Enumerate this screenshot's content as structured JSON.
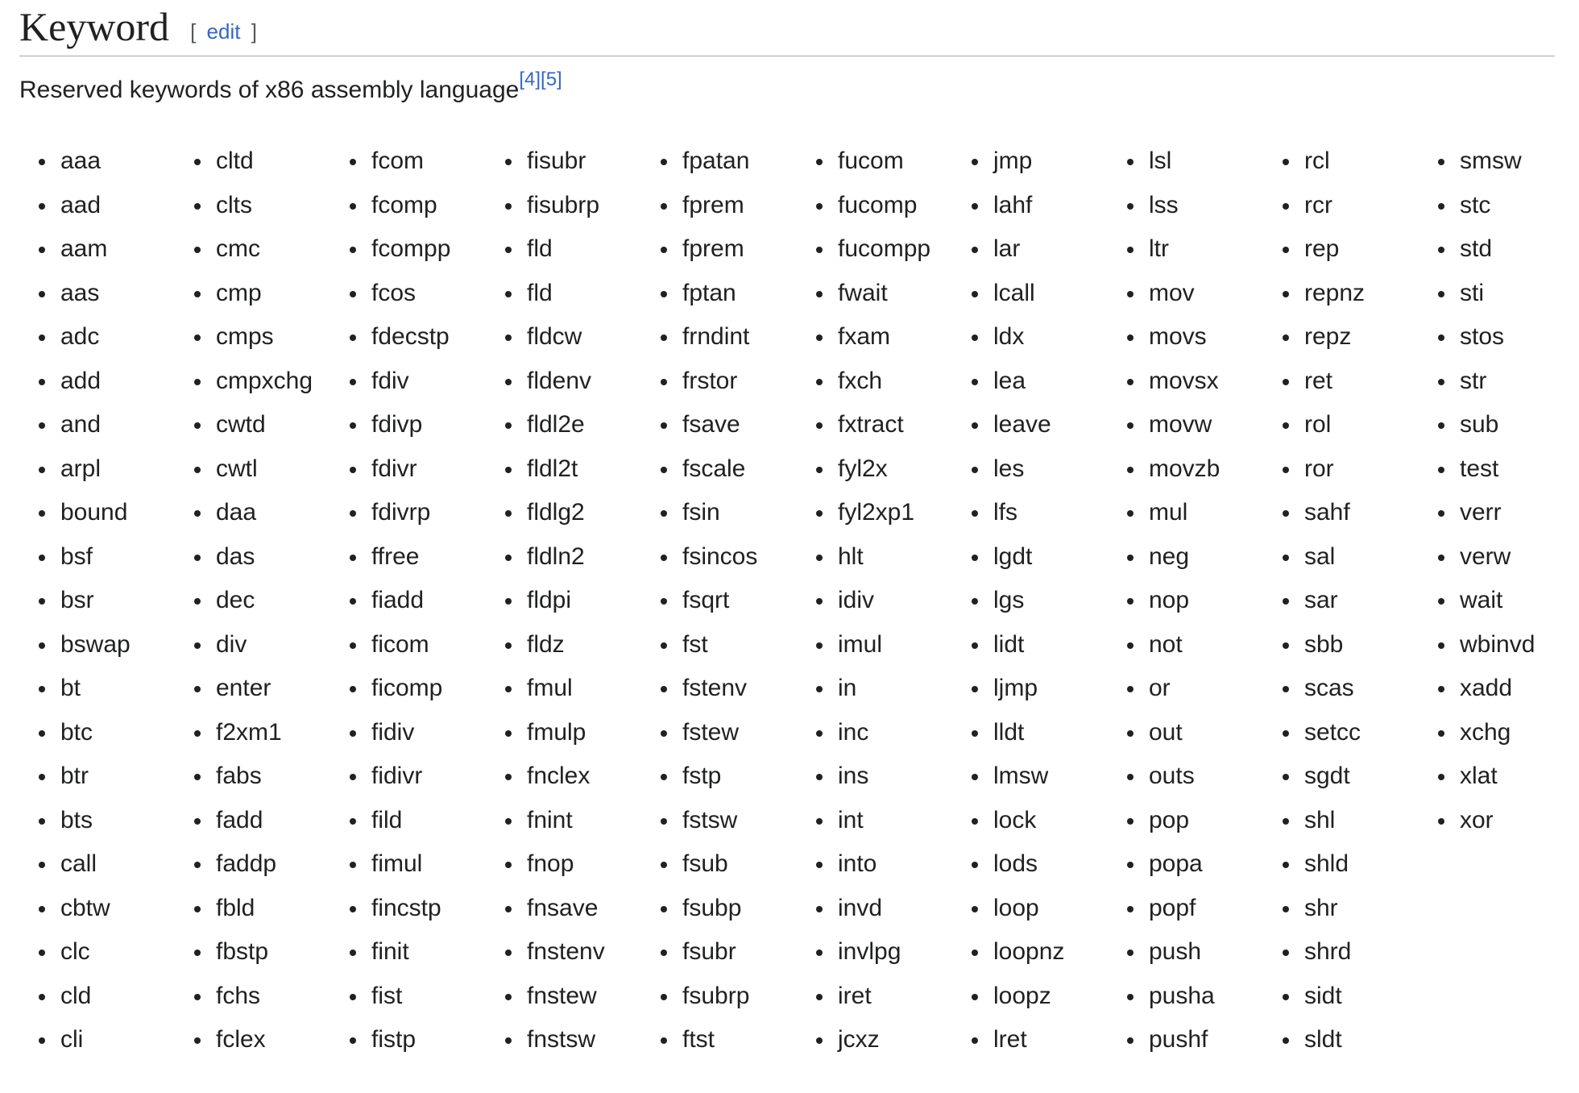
{
  "section": {
    "title": "Keyword",
    "edit_open": "[",
    "edit_label": "edit",
    "edit_close": "]"
  },
  "intro": {
    "text": "Reserved keywords of x86 assembly language",
    "refs": [
      "[4]",
      "[5]"
    ]
  },
  "keyword_columns": [
    [
      "aaa",
      "aad",
      "aam",
      "aas",
      "adc",
      "add",
      "and",
      "arpl",
      "bound",
      "bsf",
      "bsr",
      "bswap",
      "bt",
      "btc",
      "btr",
      "bts",
      "call",
      "cbtw",
      "clc",
      "cld",
      "cli"
    ],
    [
      "cltd",
      "clts",
      "cmc",
      "cmp",
      "cmps",
      "cmpxchg",
      "cwtd",
      "cwtl",
      "daa",
      "das",
      "dec",
      "div",
      "enter",
      "f2xm1",
      "fabs",
      "fadd",
      "faddp",
      "fbld",
      "fbstp",
      "fchs",
      "fclex"
    ],
    [
      "fcom",
      "fcomp",
      "fcompp",
      "fcos",
      "fdecstp",
      "fdiv",
      "fdivp",
      "fdivr",
      "fdivrp",
      "ffree",
      "fiadd",
      "ficom",
      "ficomp",
      "fidiv",
      "fidivr",
      "fild",
      "fimul",
      "fincstp",
      "finit",
      "fist",
      "fistp"
    ],
    [
      "fisubr",
      "fisubrp",
      "fld",
      "fld",
      "fldcw",
      "fldenv",
      "fldl2e",
      "fldl2t",
      "fldlg2",
      "fldln2",
      "fldpi",
      "fldz",
      "fmul",
      "fmulp",
      "fnclex",
      "fnint",
      "fnop",
      "fnsave",
      "fnstenv",
      "fnstew",
      "fnstsw"
    ],
    [
      "fpatan",
      "fprem",
      "fprem",
      "fptan",
      "frndint",
      "frstor",
      "fsave",
      "fscale",
      "fsin",
      "fsincos",
      "fsqrt",
      "fst",
      "fstenv",
      "fstew",
      "fstp",
      "fstsw",
      "fsub",
      "fsubp",
      "fsubr",
      "fsubrp",
      "ftst"
    ],
    [
      "fucom",
      "fucomp",
      "fucompp",
      "fwait",
      "fxam",
      "fxch",
      "fxtract",
      "fyl2x",
      "fyl2xp1",
      "hlt",
      "idiv",
      "imul",
      "in",
      "inc",
      "ins",
      "int",
      "into",
      "invd",
      "invlpg",
      "iret",
      "jcxz"
    ],
    [
      "jmp",
      "lahf",
      "lar",
      "lcall",
      "ldx",
      "lea",
      "leave",
      "les",
      "lfs",
      "lgdt",
      "lgs",
      "lidt",
      "ljmp",
      "lldt",
      "lmsw",
      "lock",
      "lods",
      "loop",
      "loopnz",
      "loopz",
      "lret"
    ],
    [
      "lsl",
      "lss",
      "ltr",
      "mov",
      "movs",
      "movsx",
      "movw",
      "movzb",
      "mul",
      "neg",
      "nop",
      "not",
      "or",
      "out",
      "outs",
      "pop",
      "popa",
      "popf",
      "push",
      "pusha",
      "pushf"
    ],
    [
      "rcl",
      "rcr",
      "rep",
      "repnz",
      "repz",
      "ret",
      "rol",
      "ror",
      "sahf",
      "sal",
      "sar",
      "sbb",
      "scas",
      "setcc",
      "sgdt",
      "shl",
      "shld",
      "shr",
      "shrd",
      "sidt",
      "sldt"
    ],
    [
      "smsw",
      "stc",
      "std",
      "sti",
      "stos",
      "str",
      "sub",
      "test",
      "verr",
      "verw",
      "wait",
      "wbinvd",
      "xadd",
      "xchg",
      "xlat",
      "xor"
    ]
  ]
}
